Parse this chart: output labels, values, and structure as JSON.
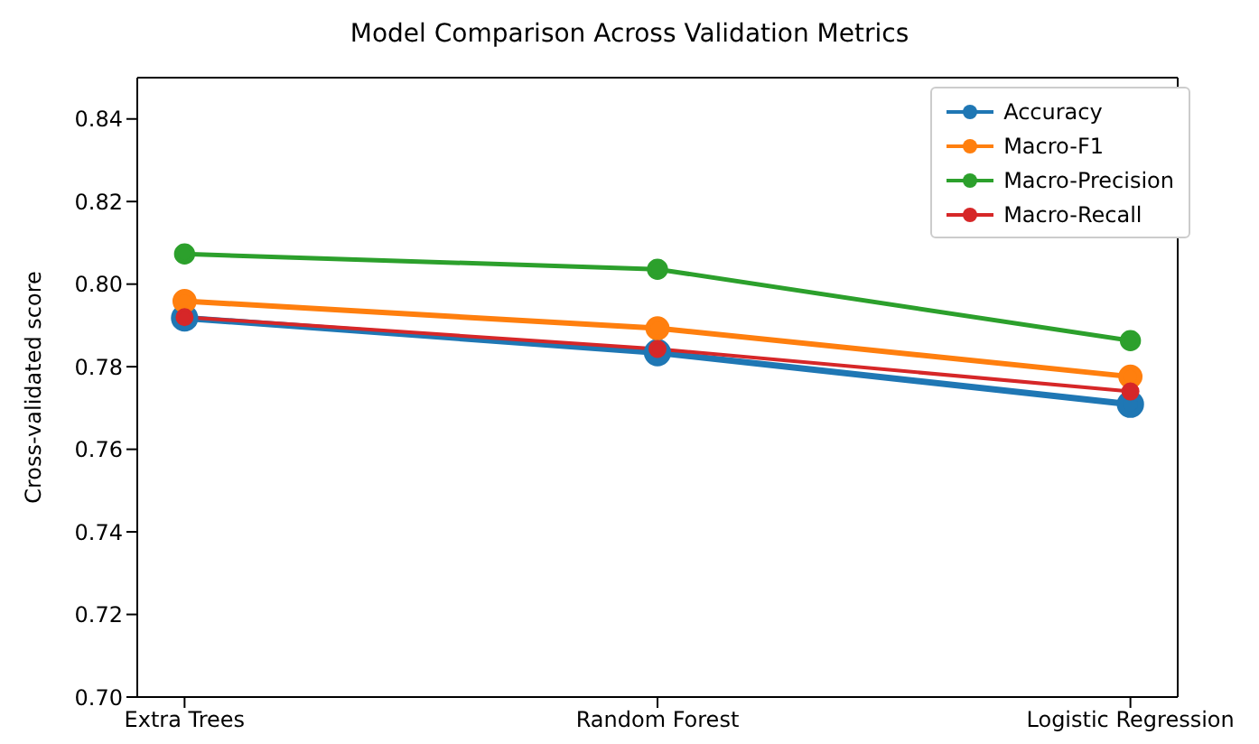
{
  "chart_data": {
    "type": "line",
    "title": "Model Comparison Across Validation Metrics",
    "ylabel": "Cross-validated score",
    "categories": [
      "Extra Trees",
      "Random Forest",
      "Logistic Regression"
    ],
    "series": [
      {
        "name": "Accuracy",
        "color": "#1f77b4",
        "values": [
          0.7918,
          0.7834,
          0.7709
        ]
      },
      {
        "name": "Macro-F1",
        "color": "#ff7f0e",
        "values": [
          0.7959,
          0.7893,
          0.7776
        ]
      },
      {
        "name": "Macro-Precision",
        "color": "#2ca02c",
        "values": [
          0.8073,
          0.8036,
          0.7863
        ]
      },
      {
        "name": "Macro-Recall",
        "color": "#d62728",
        "values": [
          0.792,
          0.7843,
          0.774
        ]
      }
    ],
    "ylim": [
      0.7,
      0.85
    ],
    "yticks": [
      {
        "value": 0.7,
        "label": "0.70"
      },
      {
        "value": 0.72,
        "label": "0.72"
      },
      {
        "value": 0.74,
        "label": "0.74"
      },
      {
        "value": 0.76,
        "label": "0.76"
      },
      {
        "value": 0.78,
        "label": "0.78"
      },
      {
        "value": 0.8,
        "label": "0.80"
      },
      {
        "value": 0.82,
        "label": "0.82"
      },
      {
        "value": 0.84,
        "label": "0.84"
      }
    ],
    "marker": "circle",
    "legend": "top right"
  }
}
